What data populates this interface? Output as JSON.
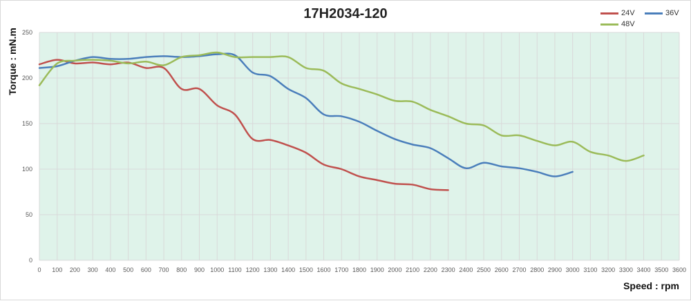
{
  "chart_data": {
    "type": "line",
    "title": "17H2034-120",
    "xlabel": "Speed : rpm",
    "ylabel": "Torque : mN.m",
    "xlim": [
      0,
      3600
    ],
    "ylim": [
      0,
      250
    ],
    "xticks": [
      0,
      100,
      200,
      300,
      400,
      500,
      600,
      700,
      800,
      900,
      1000,
      1100,
      1200,
      1300,
      1400,
      1500,
      1600,
      1700,
      1800,
      1900,
      2000,
      2100,
      2200,
      2300,
      2400,
      2500,
      2600,
      2700,
      2800,
      2900,
      3000,
      3100,
      3200,
      3300,
      3400,
      3500,
      3600
    ],
    "yticks": [
      0,
      50,
      100,
      150,
      200,
      250
    ],
    "grid": true,
    "legend": "top-right",
    "plot_background": "#dff3ea",
    "series": [
      {
        "name": "24V",
        "color": "#c0504d",
        "x": [
          0,
          100,
          200,
          300,
          400,
          500,
          600,
          700,
          800,
          900,
          1000,
          1100,
          1200,
          1300,
          1400,
          1500,
          1600,
          1700,
          1800,
          1900,
          2000,
          2100,
          2200,
          2300
        ],
        "y": [
          215,
          220,
          216,
          217,
          215,
          217,
          211,
          211,
          188,
          188,
          170,
          160,
          133,
          132,
          126,
          118,
          105,
          100,
          92,
          88,
          84,
          83,
          78,
          77
        ]
      },
      {
        "name": "36V",
        "color": "#4a7ebb",
        "x": [
          0,
          100,
          200,
          300,
          400,
          500,
          600,
          700,
          800,
          900,
          1000,
          1100,
          1200,
          1300,
          1400,
          1500,
          1600,
          1700,
          1800,
          1900,
          2000,
          2100,
          2200,
          2300,
          2400,
          2500,
          2600,
          2700,
          2800,
          2900,
          3000
        ],
        "y": [
          211,
          213,
          219,
          223,
          221,
          221,
          223,
          224,
          223,
          224,
          226,
          225,
          206,
          202,
          188,
          178,
          160,
          158,
          152,
          142,
          133,
          127,
          123,
          112,
          101,
          107,
          103,
          101,
          97,
          92,
          97
        ]
      },
      {
        "name": "48V",
        "color": "#9bbb59",
        "x": [
          0,
          100,
          200,
          300,
          400,
          500,
          600,
          700,
          800,
          900,
          1000,
          1100,
          1200,
          1300,
          1400,
          1500,
          1600,
          1700,
          1800,
          1900,
          2000,
          2100,
          2200,
          2300,
          2400,
          2500,
          2600,
          2700,
          2800,
          2900,
          3000,
          3100,
          3200,
          3300,
          3400
        ],
        "y": [
          192,
          216,
          219,
          220,
          219,
          216,
          218,
          214,
          223,
          225,
          228,
          223,
          223,
          223,
          223,
          211,
          208,
          194,
          188,
          182,
          175,
          174,
          165,
          158,
          150,
          148,
          137,
          137,
          131,
          126,
          130,
          119,
          115,
          109,
          115
        ]
      }
    ]
  }
}
